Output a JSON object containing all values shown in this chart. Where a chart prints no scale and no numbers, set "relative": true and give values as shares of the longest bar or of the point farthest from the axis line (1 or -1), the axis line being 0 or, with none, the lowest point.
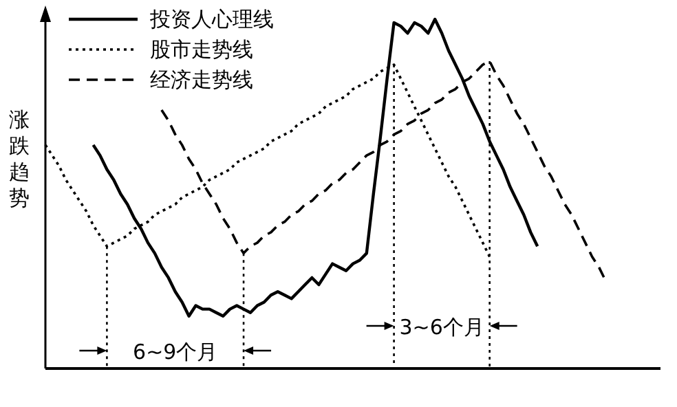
{
  "chart_data": {
    "type": "line",
    "relative": true,
    "ylabel": "涨跌趋势",
    "legend": "top left",
    "categories": [
      null,
      null,
      null,
      null,
      null,
      null,
      null,
      null,
      null,
      null,
      null,
      null,
      null,
      null,
      null,
      null,
      null,
      null,
      null,
      null,
      null,
      null,
      null,
      null,
      null,
      null,
      null,
      null,
      null,
      null,
      null,
      null,
      null,
      null,
      null,
      null,
      null,
      null,
      null,
      null,
      null,
      null,
      null,
      null,
      null,
      null,
      null,
      null,
      null,
      null,
      null,
      null,
      null,
      null,
      null,
      null,
      null,
      null,
      null,
      null,
      null,
      null,
      null,
      null,
      null,
      null,
      null,
      null,
      null,
      null,
      null,
      null,
      null,
      null,
      null,
      null,
      null,
      null,
      null,
      null,
      null,
      null,
      null,
      null
    ],
    "series": [
      {
        "name": "投资人心理线",
        "color": "#000000",
        "line_style": "solid",
        "values": [
          null,
          null,
          null,
          null,
          null,
          null,
          null,
          0.64,
          0.61,
          0.57,
          0.54,
          0.5,
          0.47,
          0.43,
          0.4,
          0.36,
          0.33,
          0.29,
          0.26,
          0.22,
          0.19,
          0.15,
          0.18,
          0.17,
          0.17,
          0.16,
          0.15,
          0.17,
          0.18,
          0.17,
          0.16,
          0.18,
          0.19,
          0.21,
          0.22,
          0.21,
          0.2,
          0.22,
          0.24,
          0.26,
          0.24,
          0.27,
          0.3,
          0.29,
          0.28,
          0.3,
          0.31,
          0.33,
          0.5,
          0.66,
          0.83,
          0.99,
          0.98,
          0.96,
          0.99,
          0.98,
          0.96,
          1,
          0.96,
          0.91,
          0.87,
          0.83,
          0.78,
          0.74,
          0.7,
          0.65,
          0.61,
          0.57,
          0.52,
          0.48,
          0.44,
          0.39,
          0.35,
          null,
          null,
          null,
          null,
          null,
          null,
          null,
          null,
          null,
          null,
          null
        ]
      },
      {
        "name": "股市走势线",
        "color": "#000000",
        "line_style": "dotted",
        "values": [
          0.64,
          0.61,
          0.58,
          0.54,
          0.51,
          0.48,
          0.45,
          0.41,
          0.38,
          0.35,
          0.36,
          0.37,
          0.38,
          0.4,
          0.41,
          0.42,
          0.44,
          0.45,
          0.46,
          0.47,
          0.49,
          0.5,
          0.51,
          0.52,
          0.54,
          0.55,
          0.56,
          0.57,
          0.59,
          0.6,
          0.61,
          0.62,
          0.63,
          0.65,
          0.66,
          0.67,
          0.68,
          0.7,
          0.71,
          0.72,
          0.73,
          0.75,
          0.76,
          0.77,
          0.78,
          0.8,
          0.81,
          0.82,
          0.83,
          0.85,
          0.86,
          0.87,
          0.83,
          0.79,
          0.75,
          0.71,
          0.67,
          0.63,
          0.59,
          0.55,
          0.52,
          0.48,
          0.44,
          0.4,
          0.36,
          0.32,
          null,
          null,
          null,
          null,
          null,
          null,
          null,
          null,
          null,
          null,
          null,
          null,
          null,
          null,
          null,
          null,
          null,
          null
        ]
      },
      {
        "name": "经济走势线",
        "color": "#000000",
        "line_style": "dashed",
        "values": [
          null,
          null,
          null,
          null,
          null,
          null,
          null,
          null,
          null,
          null,
          null,
          null,
          null,
          null,
          null,
          null,
          null,
          0.74,
          0.71,
          0.67,
          0.64,
          0.6,
          0.57,
          0.53,
          0.5,
          0.47,
          0.43,
          0.4,
          0.36,
          0.33,
          0.35,
          0.36,
          0.38,
          0.39,
          0.41,
          0.42,
          0.44,
          0.45,
          0.47,
          0.48,
          0.5,
          0.51,
          0.53,
          0.54,
          0.56,
          0.57,
          0.59,
          0.61,
          0.62,
          0.64,
          0.65,
          0.67,
          0.68,
          0.7,
          0.71,
          0.73,
          0.74,
          0.76,
          0.77,
          0.79,
          0.8,
          0.82,
          0.83,
          0.85,
          0.87,
          0.88,
          0.84,
          0.81,
          0.77,
          0.73,
          0.7,
          0.66,
          0.62,
          0.58,
          0.55,
          0.51,
          0.47,
          0.44,
          0.4,
          0.36,
          0.32,
          0.29,
          0.25,
          null
        ]
      }
    ],
    "annotations": [
      "6~9个月",
      "3~6个月"
    ]
  }
}
